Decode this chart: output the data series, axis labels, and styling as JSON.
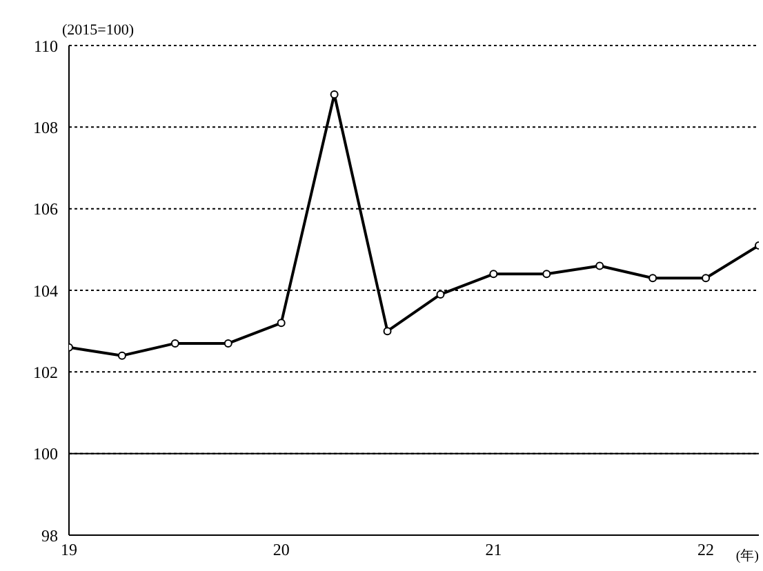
{
  "chart_data": {
    "type": "line",
    "ylabel": "(2015=100)",
    "xlabel": "(年)",
    "x": [
      19,
      19.25,
      19.5,
      19.75,
      20,
      20.25,
      20.5,
      20.75,
      21,
      21.25,
      21.5,
      21.75,
      22,
      22.25
    ],
    "series": [
      {
        "color": "#000000",
        "values": [
          102.6,
          102.4,
          102.7,
          102.7,
          103.2,
          108.8,
          103.0,
          103.9,
          104.4,
          104.4,
          104.6,
          104.3,
          104.3,
          105.1
        ]
      }
    ],
    "xlim": [
      19,
      22.25
    ],
    "xticks": [
      19,
      20,
      21,
      22
    ],
    "ylim": [
      98,
      110
    ],
    "yticks": [
      98,
      100,
      102,
      104,
      106,
      108,
      110
    ],
    "ref_lines": [
      {
        "axis": "y",
        "value": 100,
        "color": "#000000",
        "line_style": "solid"
      }
    ],
    "grid": "y",
    "marker": "circle",
    "line_style": "solid",
    "legend": false
  }
}
